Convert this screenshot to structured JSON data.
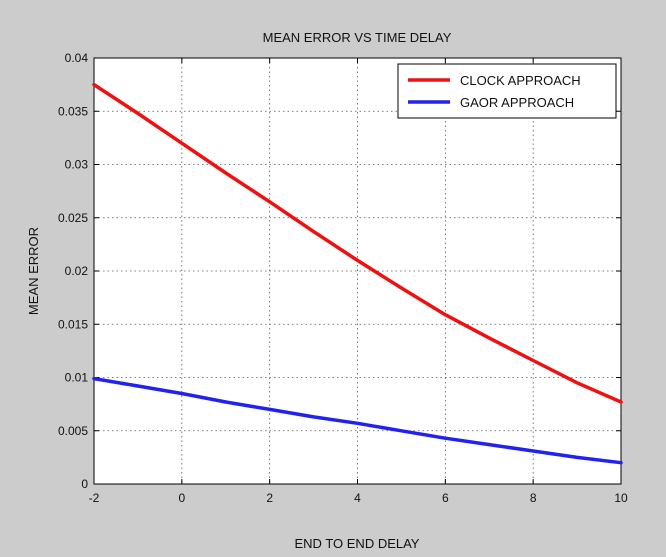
{
  "figure": {
    "background_color": "#cccccc",
    "axes_color": "#ffffff"
  },
  "chart_data": {
    "type": "line",
    "title": "MEAN ERROR VS TIME DELAY",
    "xlabel": "END TO END DELAY",
    "ylabel": "MEAN ERROR",
    "xlim": [
      -2,
      10
    ],
    "ylim": [
      0,
      0.04
    ],
    "xticks": [
      -2,
      0,
      2,
      4,
      6,
      8,
      10
    ],
    "yticks": [
      0,
      0.005,
      0.01,
      0.015,
      0.02,
      0.025,
      0.03,
      0.035,
      0.04
    ],
    "xtick_labels": [
      "-2",
      "0",
      "2",
      "4",
      "6",
      "8",
      "10"
    ],
    "ytick_labels": [
      "0",
      "0.005",
      "0.01",
      "0.015",
      "0.02",
      "0.025",
      "0.03",
      "0.035",
      "0.04"
    ],
    "grid": true,
    "legend_position": "top-right",
    "series": [
      {
        "name": "CLOCK APPROACH",
        "color": "#ee1111",
        "x": [
          -2,
          -1,
          0,
          1,
          2,
          3,
          4,
          5,
          6,
          7,
          8,
          9,
          10
        ],
        "y": [
          0.0375,
          0.0348,
          0.032,
          0.0292,
          0.0265,
          0.0237,
          0.021,
          0.0184,
          0.0159,
          0.0137,
          0.0116,
          0.0095,
          0.0077
        ]
      },
      {
        "name": "GAOR APPROACH",
        "color": "#2222ee",
        "x": [
          -2,
          -1,
          0,
          1,
          2,
          3,
          4,
          5,
          6,
          7,
          8,
          9,
          10
        ],
        "y": [
          0.0099,
          0.0092,
          0.0085,
          0.0077,
          0.007,
          0.0063,
          0.0057,
          0.005,
          0.0043,
          0.0037,
          0.0031,
          0.0025,
          0.002
        ]
      }
    ]
  }
}
